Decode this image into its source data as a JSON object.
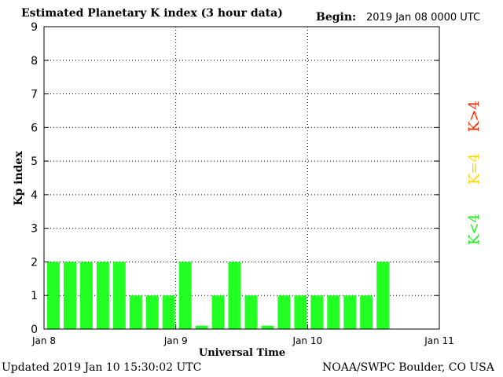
{
  "header": {
    "title": "Estimated Planetary K index (3 hour data)",
    "begin_label": "Begin:",
    "begin_value": "2019 Jan 08 0000 UTC"
  },
  "footer": {
    "updated": "Updated 2019 Jan 10 15:30:02 UTC",
    "source": "NOAA/SWPC Boulder, CO USA"
  },
  "legend": {
    "high": {
      "label": "K>4",
      "color": "#ff2a00"
    },
    "equal": {
      "label": "K=4",
      "color": "#ffd400"
    },
    "low": {
      "label": "K<4",
      "color": "#22ee22"
    }
  },
  "chart_data": {
    "type": "bar",
    "xlabel": "Universal Time",
    "ylabel": "Kp index",
    "ylim": [
      0,
      9
    ],
    "y_ticks": [
      "0",
      "1",
      "2",
      "3",
      "4",
      "5",
      "6",
      "7",
      "8",
      "9"
    ],
    "x_ticks": [
      "Jan 8",
      "Jan 9",
      "Jan 10",
      "Jan 11"
    ],
    "bar_color": "#22ff22",
    "grid": "dotted",
    "values": [
      2,
      2,
      2,
      2,
      2,
      1,
      1,
      1,
      2,
      0.1,
      1,
      2,
      1,
      0.1,
      1,
      1,
      1,
      1,
      1,
      1,
      2
    ]
  }
}
